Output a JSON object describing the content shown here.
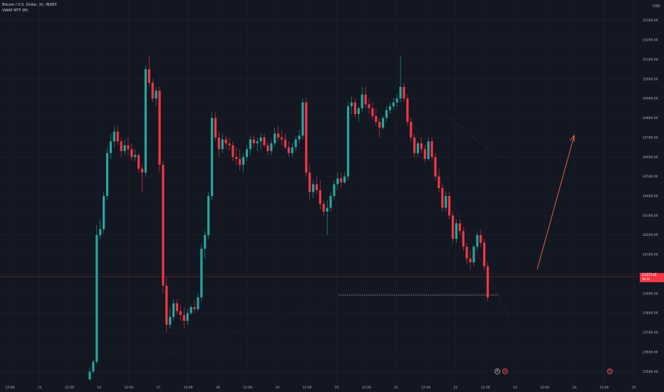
{
  "legend": {
    "symbol_line": "Bitcoin / U.S. Dollar, 1h, INDEX",
    "indicator_line": "VWAP MTF (M)"
  },
  "price_axis": {
    "currency": "USD",
    "ticks": [
      "25300.00",
      "25200.00",
      "25100.00",
      "25000.00",
      "24900.00",
      "24800.00",
      "24700.00",
      "24600.00",
      "24500.00",
      "24400.00",
      "24300.00",
      "24200.00",
      "24100.00",
      "24000.00",
      "23900.00",
      "23800.00",
      "23700.00",
      "23600.00",
      "23500.00"
    ]
  },
  "time_axis": {
    "ticks": [
      "12:00",
      "15",
      "12:00",
      "16",
      "12:00",
      "17",
      "12:00",
      "18",
      "12:00",
      "19",
      "12:00",
      "20",
      "12:00",
      "21",
      "12:00",
      "22",
      "12:00",
      "23",
      "12:00",
      "24",
      "12:00",
      "25"
    ]
  },
  "price_tag": {
    "line1": "23,879.49",
    "line2": "36:31"
  },
  "colors": {
    "background": "#131722",
    "up": "#26a69a",
    "down": "#f23645",
    "arrow": "#e0604a"
  },
  "chart_data": {
    "type": "candlestick",
    "timeframe": "1h",
    "y_axis_range": [
      23450,
      25350
    ],
    "last_price": 23879.49,
    "candles": [
      {
        "o": 23460,
        "h": 23520,
        "l": 23455,
        "c": 23500
      },
      {
        "o": 23500,
        "h": 23560,
        "l": 23490,
        "c": 23550
      },
      {
        "o": 23550,
        "h": 24250,
        "l": 23540,
        "c": 24200
      },
      {
        "o": 24200,
        "h": 24280,
        "l": 24180,
        "c": 24230
      },
      {
        "o": 24230,
        "h": 24420,
        "l": 24210,
        "c": 24400
      },
      {
        "o": 24400,
        "h": 24650,
        "l": 24380,
        "c": 24620
      },
      {
        "o": 24620,
        "h": 24720,
        "l": 24590,
        "c": 24680
      },
      {
        "o": 24680,
        "h": 24760,
        "l": 24650,
        "c": 24730
      },
      {
        "o": 24730,
        "h": 24760,
        "l": 24660,
        "c": 24680
      },
      {
        "o": 24680,
        "h": 24700,
        "l": 24600,
        "c": 24630
      },
      {
        "o": 24630,
        "h": 24690,
        "l": 24610,
        "c": 24660
      },
      {
        "o": 24660,
        "h": 24700,
        "l": 24610,
        "c": 24640
      },
      {
        "o": 24640,
        "h": 24670,
        "l": 24580,
        "c": 24600
      },
      {
        "o": 24600,
        "h": 24640,
        "l": 24580,
        "c": 24610
      },
      {
        "o": 24610,
        "h": 24620,
        "l": 24520,
        "c": 24540
      },
      {
        "o": 24540,
        "h": 24560,
        "l": 24420,
        "c": 24520
      },
      {
        "o": 24520,
        "h": 25070,
        "l": 24500,
        "c": 25050
      },
      {
        "o": 25050,
        "h": 25120,
        "l": 24960,
        "c": 24980
      },
      {
        "o": 24980,
        "h": 25000,
        "l": 24880,
        "c": 24900
      },
      {
        "o": 24900,
        "h": 24960,
        "l": 24860,
        "c": 24940
      },
      {
        "o": 24940,
        "h": 24960,
        "l": 24520,
        "c": 24560
      },
      {
        "o": 24560,
        "h": 24580,
        "l": 23900,
        "c": 23940
      },
      {
        "o": 23940,
        "h": 23990,
        "l": 23700,
        "c": 23740
      },
      {
        "o": 23740,
        "h": 23830,
        "l": 23720,
        "c": 23780
      },
      {
        "o": 23780,
        "h": 23870,
        "l": 23760,
        "c": 23850
      },
      {
        "o": 23850,
        "h": 23870,
        "l": 23790,
        "c": 23810
      },
      {
        "o": 23810,
        "h": 23840,
        "l": 23760,
        "c": 23790
      },
      {
        "o": 23790,
        "h": 23830,
        "l": 23720,
        "c": 23760
      },
      {
        "o": 23760,
        "h": 23820,
        "l": 23740,
        "c": 23800
      },
      {
        "o": 23800,
        "h": 23840,
        "l": 23790,
        "c": 23830
      },
      {
        "o": 23830,
        "h": 23870,
        "l": 23800,
        "c": 23820
      },
      {
        "o": 23820,
        "h": 23900,
        "l": 23810,
        "c": 23880
      },
      {
        "o": 23880,
        "h": 24150,
        "l": 23860,
        "c": 24130
      },
      {
        "o": 24130,
        "h": 24220,
        "l": 24080,
        "c": 24200
      },
      {
        "o": 24200,
        "h": 24420,
        "l": 24180,
        "c": 24400
      },
      {
        "o": 24400,
        "h": 24830,
        "l": 24380,
        "c": 24800
      },
      {
        "o": 24800,
        "h": 24830,
        "l": 24680,
        "c": 24700
      },
      {
        "o": 24700,
        "h": 24730,
        "l": 24600,
        "c": 24640
      },
      {
        "o": 24640,
        "h": 24720,
        "l": 24620,
        "c": 24690
      },
      {
        "o": 24690,
        "h": 24710,
        "l": 24640,
        "c": 24670
      },
      {
        "o": 24670,
        "h": 24700,
        "l": 24630,
        "c": 24660
      },
      {
        "o": 24660,
        "h": 24680,
        "l": 24580,
        "c": 24600
      },
      {
        "o": 24600,
        "h": 24650,
        "l": 24560,
        "c": 24590
      },
      {
        "o": 24590,
        "h": 24640,
        "l": 24530,
        "c": 24560
      },
      {
        "o": 24560,
        "h": 24620,
        "l": 24520,
        "c": 24600
      },
      {
        "o": 24600,
        "h": 24660,
        "l": 24580,
        "c": 24640
      },
      {
        "o": 24640,
        "h": 24710,
        "l": 24610,
        "c": 24690
      },
      {
        "o": 24690,
        "h": 24710,
        "l": 24650,
        "c": 24670
      },
      {
        "o": 24670,
        "h": 24700,
        "l": 24630,
        "c": 24680
      },
      {
        "o": 24680,
        "h": 24720,
        "l": 24640,
        "c": 24700
      },
      {
        "o": 24700,
        "h": 24720,
        "l": 24650,
        "c": 24660
      },
      {
        "o": 24660,
        "h": 24680,
        "l": 24610,
        "c": 24630
      },
      {
        "o": 24630,
        "h": 24690,
        "l": 24610,
        "c": 24670
      },
      {
        "o": 24670,
        "h": 24750,
        "l": 24650,
        "c": 24720
      },
      {
        "o": 24720,
        "h": 24760,
        "l": 24680,
        "c": 24700
      },
      {
        "o": 24700,
        "h": 24740,
        "l": 24660,
        "c": 24690
      },
      {
        "o": 24690,
        "h": 24720,
        "l": 24640,
        "c": 24650
      },
      {
        "o": 24650,
        "h": 24680,
        "l": 24600,
        "c": 24620
      },
      {
        "o": 24620,
        "h": 24670,
        "l": 24600,
        "c": 24650
      },
      {
        "o": 24650,
        "h": 24710,
        "l": 24630,
        "c": 24690
      },
      {
        "o": 24690,
        "h": 24740,
        "l": 24670,
        "c": 24710
      },
      {
        "o": 24710,
        "h": 24900,
        "l": 24690,
        "c": 24880
      },
      {
        "o": 24880,
        "h": 24900,
        "l": 24500,
        "c": 24520
      },
      {
        "o": 24520,
        "h": 24560,
        "l": 24380,
        "c": 24420
      },
      {
        "o": 24420,
        "h": 24480,
        "l": 24390,
        "c": 24460
      },
      {
        "o": 24460,
        "h": 24500,
        "l": 24410,
        "c": 24430
      },
      {
        "o": 24430,
        "h": 24480,
        "l": 24330,
        "c": 24360
      },
      {
        "o": 24360,
        "h": 24380,
        "l": 24300,
        "c": 24320
      },
      {
        "o": 24320,
        "h": 24380,
        "l": 24200,
        "c": 24340
      },
      {
        "o": 24340,
        "h": 24420,
        "l": 24320,
        "c": 24400
      },
      {
        "o": 24400,
        "h": 24480,
        "l": 24380,
        "c": 24460
      },
      {
        "o": 24460,
        "h": 24520,
        "l": 24430,
        "c": 24490
      },
      {
        "o": 24490,
        "h": 24520,
        "l": 24440,
        "c": 24470
      },
      {
        "o": 24470,
        "h": 24520,
        "l": 24460,
        "c": 24500
      },
      {
        "o": 24500,
        "h": 24880,
        "l": 24480,
        "c": 24860
      },
      {
        "o": 24860,
        "h": 24910,
        "l": 24820,
        "c": 24880
      },
      {
        "o": 24880,
        "h": 24900,
        "l": 24800,
        "c": 24820
      },
      {
        "o": 24820,
        "h": 24860,
        "l": 24780,
        "c": 24850
      },
      {
        "o": 24850,
        "h": 24960,
        "l": 24830,
        "c": 24920
      },
      {
        "o": 24920,
        "h": 24960,
        "l": 24850,
        "c": 24870
      },
      {
        "o": 24870,
        "h": 24900,
        "l": 24820,
        "c": 24850
      },
      {
        "o": 24850,
        "h": 24880,
        "l": 24790,
        "c": 24810
      },
      {
        "o": 24810,
        "h": 24850,
        "l": 24760,
        "c": 24780
      },
      {
        "o": 24780,
        "h": 24800,
        "l": 24700,
        "c": 24750
      },
      {
        "o": 24750,
        "h": 24810,
        "l": 24740,
        "c": 24800
      },
      {
        "o": 24800,
        "h": 24860,
        "l": 24780,
        "c": 24840
      },
      {
        "o": 24840,
        "h": 24880,
        "l": 24820,
        "c": 24860
      },
      {
        "o": 24860,
        "h": 24900,
        "l": 24840,
        "c": 24880
      },
      {
        "o": 24880,
        "h": 24920,
        "l": 24860,
        "c": 24900
      },
      {
        "o": 24900,
        "h": 25120,
        "l": 24880,
        "c": 24960
      },
      {
        "o": 24960,
        "h": 24980,
        "l": 24880,
        "c": 24900
      },
      {
        "o": 24900,
        "h": 24920,
        "l": 24760,
        "c": 24780
      },
      {
        "o": 24780,
        "h": 24800,
        "l": 24680,
        "c": 24700
      },
      {
        "o": 24700,
        "h": 24720,
        "l": 24600,
        "c": 24620
      },
      {
        "o": 24620,
        "h": 24680,
        "l": 24600,
        "c": 24670
      },
      {
        "o": 24670,
        "h": 24700,
        "l": 24620,
        "c": 24640
      },
      {
        "o": 24640,
        "h": 24660,
        "l": 24570,
        "c": 24590
      },
      {
        "o": 24590,
        "h": 24700,
        "l": 24580,
        "c": 24680
      },
      {
        "o": 24680,
        "h": 24700,
        "l": 24580,
        "c": 24600
      },
      {
        "o": 24600,
        "h": 24620,
        "l": 24480,
        "c": 24500
      },
      {
        "o": 24500,
        "h": 24540,
        "l": 24420,
        "c": 24440
      },
      {
        "o": 24440,
        "h": 24460,
        "l": 24320,
        "c": 24340
      },
      {
        "o": 24340,
        "h": 24420,
        "l": 24320,
        "c": 24400
      },
      {
        "o": 24400,
        "h": 24420,
        "l": 24280,
        "c": 24300
      },
      {
        "o": 24300,
        "h": 24320,
        "l": 24160,
        "c": 24180
      },
      {
        "o": 24180,
        "h": 24280,
        "l": 24160,
        "c": 24260
      },
      {
        "o": 24260,
        "h": 24280,
        "l": 24200,
        "c": 24220
      },
      {
        "o": 24220,
        "h": 24240,
        "l": 24120,
        "c": 24140
      },
      {
        "o": 24140,
        "h": 24160,
        "l": 24050,
        "c": 24080
      },
      {
        "o": 24080,
        "h": 24120,
        "l": 24020,
        "c": 24060
      },
      {
        "o": 24060,
        "h": 24150,
        "l": 24040,
        "c": 24140
      },
      {
        "o": 24140,
        "h": 24220,
        "l": 24120,
        "c": 24200
      },
      {
        "o": 24200,
        "h": 24230,
        "l": 24140,
        "c": 24160
      },
      {
        "o": 24160,
        "h": 24180,
        "l": 24020,
        "c": 24040
      },
      {
        "o": 24040,
        "h": 24060,
        "l": 23860,
        "c": 23880
      }
    ]
  }
}
